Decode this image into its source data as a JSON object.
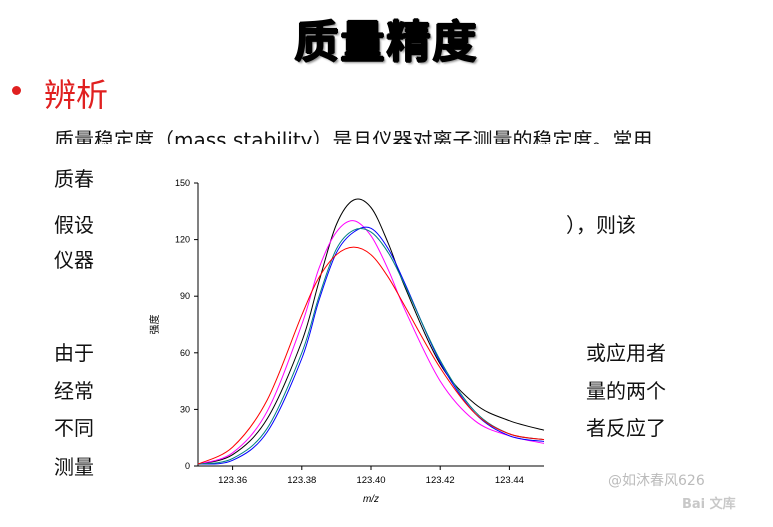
{
  "title": "质量精度",
  "section": "辨析",
  "lines": {
    "l1": "质量稳定度（mass stability）是且仪器对离子测量的稳定度。常用",
    "l2_left": "质春",
    "l3_left": "假设",
    "l3_right": "），则该",
    "l4_left": "仪器",
    "l5_left": "由于",
    "l5_right": "或应用者",
    "l6_left": "经常",
    "l6_right": "量的两个",
    "l7_left": "不同",
    "l7_right": "者反应了",
    "l8_left": "测量"
  },
  "watermark": {
    "user": "@如沐春风626",
    "brand": "Bai 文库"
  },
  "chart_data": {
    "type": "line",
    "xlabel": "m/z",
    "ylabel": "强度",
    "xlim": [
      123.35,
      123.45
    ],
    "ylim": [
      0,
      150
    ],
    "xticks": [
      "123.36",
      "123.38",
      "123.40",
      "123.42",
      "123.44"
    ],
    "yticks": [
      "0",
      "30",
      "60",
      "90",
      "120",
      "150"
    ],
    "series": [
      {
        "color": "#000000",
        "x": [
          123.35,
          123.36,
          123.37,
          123.38,
          123.385,
          123.39,
          123.395,
          123.4,
          123.405,
          123.41,
          123.42,
          123.43,
          123.44,
          123.45
        ],
        "y": [
          1,
          6,
          25,
          66,
          98,
          128,
          141,
          137,
          118,
          94,
          54,
          33,
          24,
          19
        ]
      },
      {
        "color": "#ff00ff",
        "x": [
          123.35,
          123.36,
          123.37,
          123.38,
          123.385,
          123.39,
          123.395,
          123.4,
          123.405,
          123.41,
          123.42,
          123.43,
          123.44,
          123.45
        ],
        "y": [
          1,
          7,
          29,
          75,
          105,
          124,
          130,
          122,
          104,
          82,
          45,
          24,
          16,
          12
        ]
      },
      {
        "color": "#0000ff",
        "x": [
          123.35,
          123.36,
          123.37,
          123.38,
          123.385,
          123.39,
          123.395,
          123.4,
          123.405,
          123.41,
          123.42,
          123.43,
          123.44,
          123.45
        ],
        "y": [
          1,
          3,
          18,
          57,
          88,
          113,
          124,
          126,
          115,
          96,
          55,
          28,
          16,
          13
        ]
      },
      {
        "color": "#008080",
        "x": [
          123.35,
          123.36,
          123.37,
          123.38,
          123.385,
          123.39,
          123.395,
          123.4,
          123.405,
          123.41,
          123.42,
          123.43,
          123.44,
          123.45
        ],
        "y": [
          1,
          4,
          20,
          60,
          90,
          115,
          125,
          124,
          113,
          95,
          56,
          29,
          17,
          14
        ]
      },
      {
        "color": "#ff0000",
        "x": [
          123.35,
          123.36,
          123.37,
          123.38,
          123.385,
          123.39,
          123.395,
          123.4,
          123.405,
          123.41,
          123.42,
          123.43,
          123.44,
          123.45
        ],
        "y": [
          1,
          10,
          35,
          80,
          100,
          112,
          116,
          112,
          100,
          84,
          52,
          28,
          17,
          14
        ]
      }
    ]
  }
}
